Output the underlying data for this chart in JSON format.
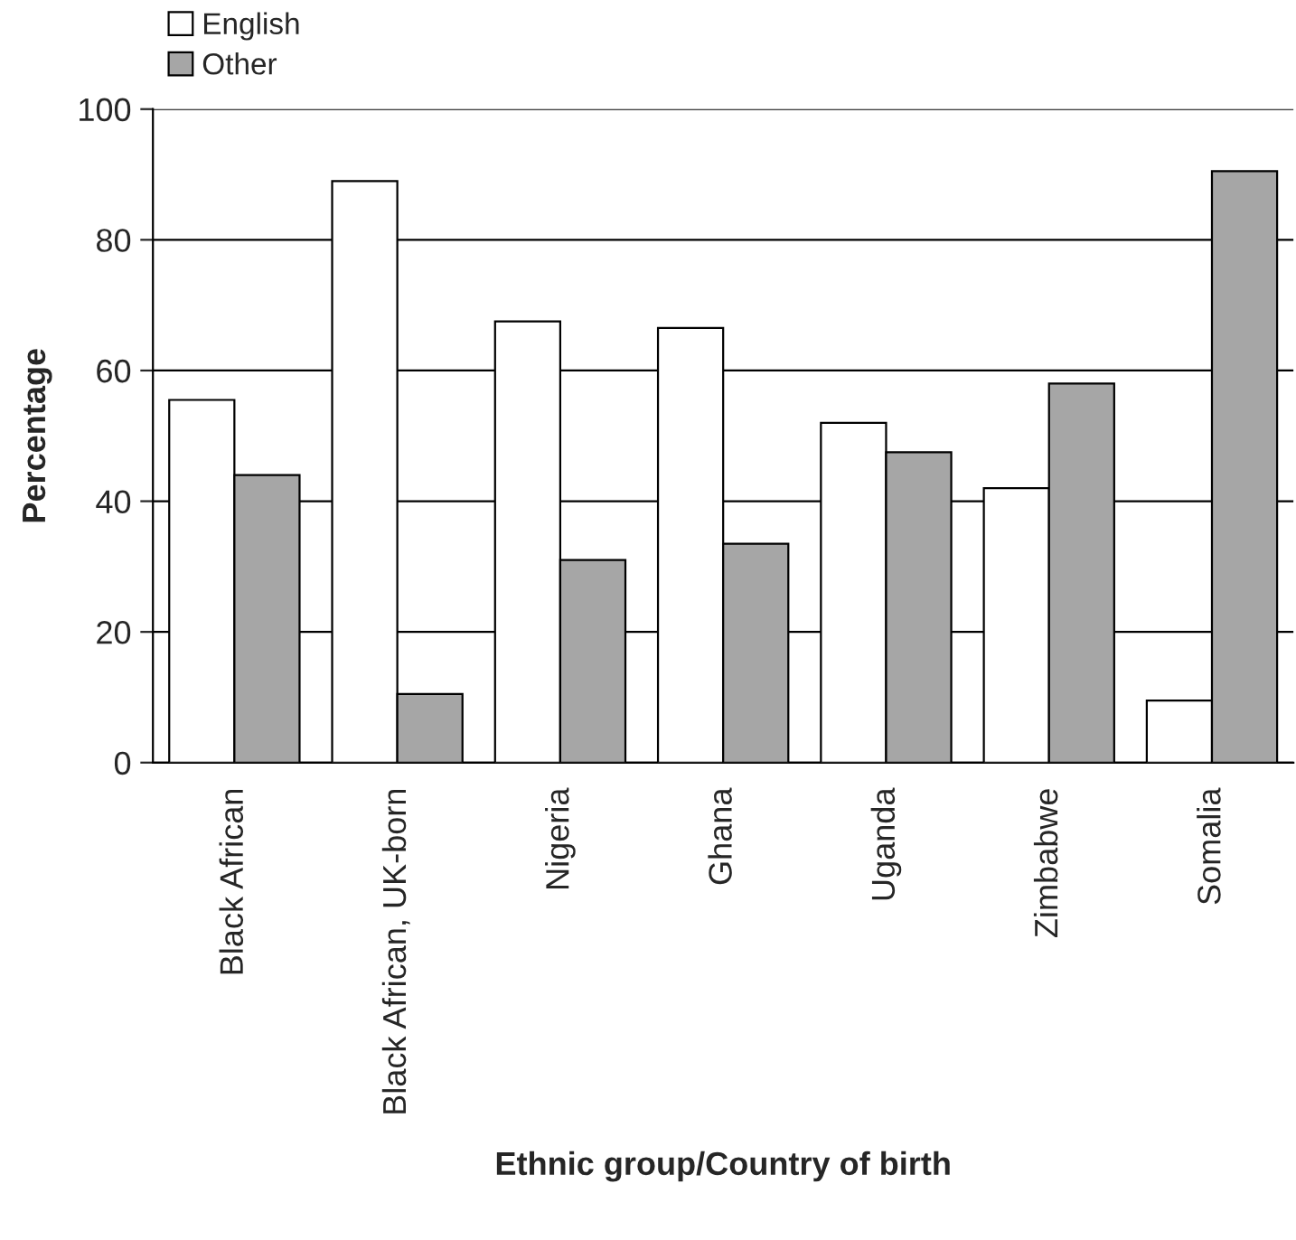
{
  "chart_data": {
    "type": "bar",
    "xlabel": "Ethnic group/Country of birth",
    "ylabel": "Percentage",
    "categories": [
      "Black African",
      "Black African, UK-born",
      "Nigeria",
      "Ghana",
      "Uganda",
      "Zimbabwe",
      "Somalia"
    ],
    "series": [
      {
        "name": "English",
        "color": "#ffffff",
        "values": [
          55.5,
          89,
          67.5,
          66.5,
          52,
          42,
          9.5
        ]
      },
      {
        "name": "Other",
        "color": "#a6a6a6",
        "values": [
          44,
          10.5,
          31,
          33.5,
          47.5,
          58,
          90.5
        ]
      }
    ],
    "ylim": [
      0,
      100
    ],
    "yticks": [
      0,
      20,
      40,
      60,
      80,
      100
    ],
    "grid": "y",
    "legend": "top left"
  }
}
